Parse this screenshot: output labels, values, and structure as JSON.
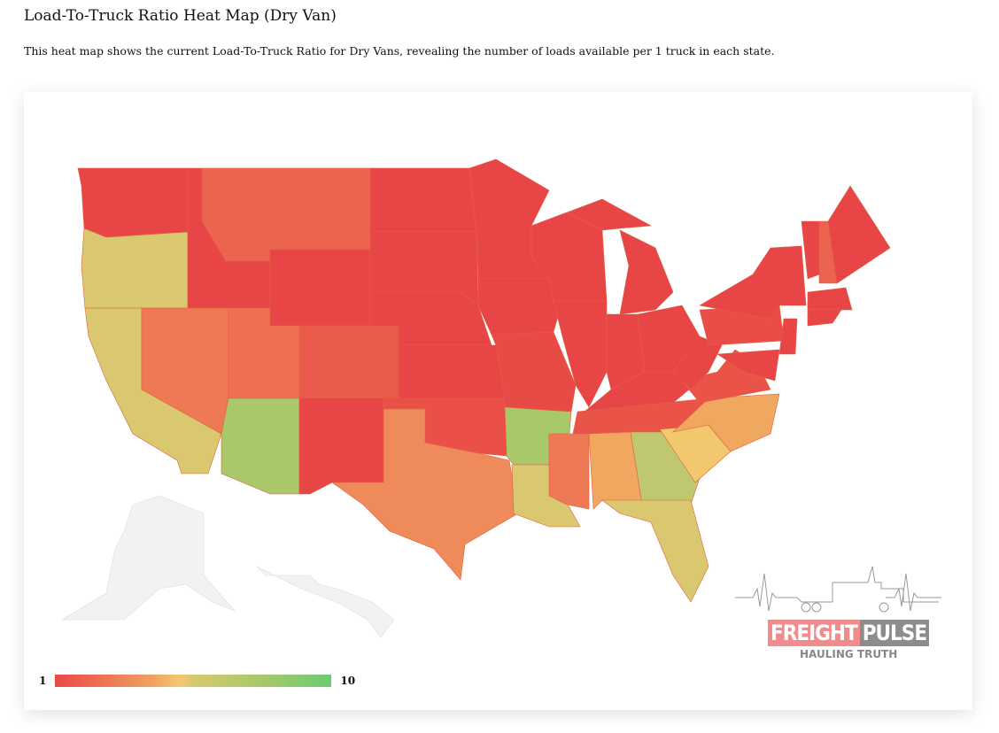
{
  "title": "Load-To-Truck Ratio Heat Map (Dry Van)",
  "description": "This heat map shows the current Load-To-Truck Ratio for Dry Vans, revealing the number of loads available per 1 truck in each state.",
  "legend": {
    "min": "1",
    "max": "10",
    "colors": [
      "#ea4848",
      "#f0a060",
      "#f2c870",
      "#d8c870",
      "#a8c86a",
      "#6ccb72"
    ]
  },
  "logo": {
    "word1": "FREIGHT",
    "word2": "PULSE",
    "tagline": "HAULING TRUTH",
    "color1": "#f08c8c",
    "color2": "#8c8c8c"
  },
  "states": [
    {
      "id": "WA",
      "color": "#e84646"
    },
    {
      "id": "OR",
      "color": "#d9c870"
    },
    {
      "id": "CA",
      "color": "#d9c870"
    },
    {
      "id": "NV",
      "color": "#ee7a55"
    },
    {
      "id": "ID",
      "color": "#e84646"
    },
    {
      "id": "MT",
      "color": "#ec6450"
    },
    {
      "id": "WY",
      "color": "#e84646"
    },
    {
      "id": "UT",
      "color": "#ee7050"
    },
    {
      "id": "CO",
      "color": "#ea5a4a"
    },
    {
      "id": "AZ",
      "color": "#a8c86a"
    },
    {
      "id": "NM",
      "color": "#e84646"
    },
    {
      "id": "ND",
      "color": "#e84646"
    },
    {
      "id": "SD",
      "color": "#e84646"
    },
    {
      "id": "NE",
      "color": "#e84646"
    },
    {
      "id": "KS",
      "color": "#e84646"
    },
    {
      "id": "OK",
      "color": "#ea5048"
    },
    {
      "id": "TX",
      "color": "#ef8a5a"
    },
    {
      "id": "MN",
      "color": "#e84646"
    },
    {
      "id": "IA",
      "color": "#e84646"
    },
    {
      "id": "MO",
      "color": "#e84a46"
    },
    {
      "id": "AR",
      "color": "#a8c86a"
    },
    {
      "id": "LA",
      "color": "#d9c870"
    },
    {
      "id": "WI",
      "color": "#e84646"
    },
    {
      "id": "IL",
      "color": "#e84646"
    },
    {
      "id": "MI",
      "color": "#e84646"
    },
    {
      "id": "MI-UP",
      "color": "#e84646"
    },
    {
      "id": "IN",
      "color": "#e84646"
    },
    {
      "id": "OH",
      "color": "#e84646"
    },
    {
      "id": "KY",
      "color": "#e84646"
    },
    {
      "id": "TN",
      "color": "#ea5448"
    },
    {
      "id": "MS",
      "color": "#ee7a55"
    },
    {
      "id": "AL",
      "color": "#f0a860"
    },
    {
      "id": "GA",
      "color": "#bfc86e"
    },
    {
      "id": "FL",
      "color": "#d9c870"
    },
    {
      "id": "SC",
      "color": "#f2c86e"
    },
    {
      "id": "NC",
      "color": "#f0a860"
    },
    {
      "id": "VA",
      "color": "#ea5448"
    },
    {
      "id": "WV",
      "color": "#e84646"
    },
    {
      "id": "PA",
      "color": "#ea4c48"
    },
    {
      "id": "NY",
      "color": "#e84646"
    },
    {
      "id": "VT",
      "color": "#e84646"
    },
    {
      "id": "NH",
      "color": "#ec6450"
    },
    {
      "id": "ME",
      "color": "#e84646"
    },
    {
      "id": "MA",
      "color": "#e84646"
    },
    {
      "id": "CT",
      "color": "#e84646"
    },
    {
      "id": "NJ",
      "color": "#e84646"
    },
    {
      "id": "MD",
      "color": "#e84646"
    },
    {
      "id": "AK",
      "color": "#f2f2f2"
    },
    {
      "id": "HI",
      "color": "#f2f2f2"
    }
  ]
}
